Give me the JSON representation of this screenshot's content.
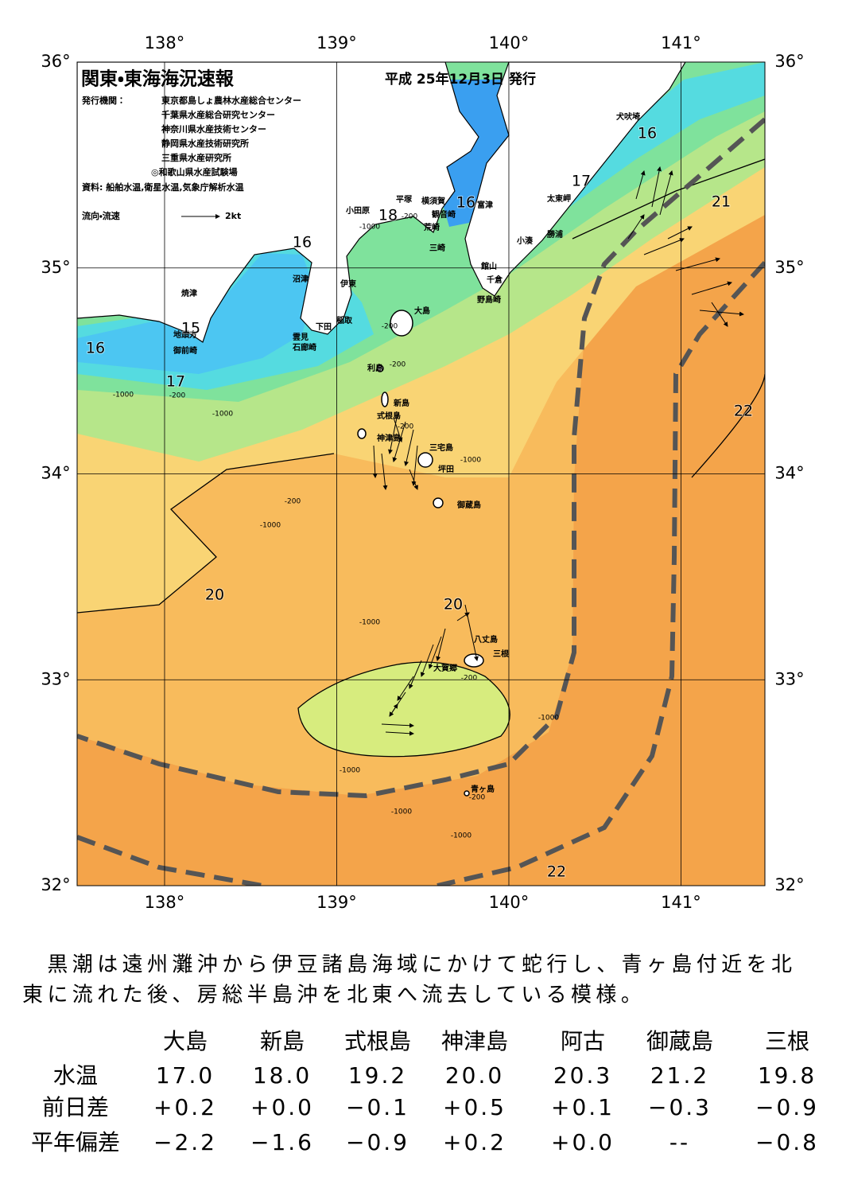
{
  "header": {
    "title": "関東・東海海況速報",
    "date": "平成 25年12月3日 発行",
    "issuer_label": "発行機関：",
    "issuers": [
      "東京都島しょ農林水産総合センター",
      "千葉県水産総合研究センター",
      "神奈川県水産技術センター",
      "静岡県水産技術研究所",
      "三重県水産研究所",
      "◎和歌山県水産試験場"
    ],
    "source": "資料: 船舶水温,衛星水温,気象庁解析水温",
    "legend_label": "流向・流速",
    "legend_scale": "2kt"
  },
  "map": {
    "lon_ticks": [
      {
        "value": 138,
        "label": "138°"
      },
      {
        "value": 139,
        "label": "139°"
      },
      {
        "value": 140,
        "label": "140°"
      },
      {
        "value": 141,
        "label": "141°"
      }
    ],
    "lat_ticks": [
      {
        "value": 36,
        "label": "36°"
      },
      {
        "value": 35,
        "label": "35°"
      },
      {
        "value": 34,
        "label": "34°"
      },
      {
        "value": 33,
        "label": "33°"
      },
      {
        "value": 32,
        "label": "32°"
      }
    ],
    "places": [
      "小田原",
      "平塚",
      "横須賀",
      "富津",
      "観音崎",
      "荒崎",
      "三崎",
      "館山",
      "千倉",
      "野島崎",
      "太東岬",
      "勝浦",
      "小湊",
      "犬吠埼",
      "沼津",
      "伊東",
      "焼津",
      "稲取",
      "下田",
      "雲見",
      "石廊崎",
      "地頭方",
      "御前崎",
      "大島",
      "利島",
      "新島",
      "式根島",
      "神津島",
      "三宅島",
      "坪田",
      "御蔵島",
      "八丈島",
      "三根",
      "大賀郷",
      "青ヶ島"
    ],
    "temperature_labels": [
      "16",
      "18",
      "16",
      "17",
      "16",
      "21",
      "22",
      "15",
      "16",
      "17",
      "20",
      "20",
      "22"
    ],
    "depth_labels": [
      "-1000",
      "-200",
      "-200",
      "-200",
      "-1000",
      "-200",
      "-1000",
      "-200",
      "-1000",
      "-200",
      "-1000",
      "-1000",
      "-200",
      "-1000",
      "-1000",
      "-1000",
      "-1000",
      "-200"
    ]
  },
  "summary": [
    "　黒潮は遠州灘沖から伊豆諸島海域にかけて蛇行し、青ヶ島付近を北",
    "東に流れた後、房総半島沖を北東へ流去している模様。"
  ],
  "table": {
    "columns": [
      "大島",
      "新島",
      "式根島",
      "神津島",
      "阿古",
      "御蔵島",
      "三根"
    ],
    "rows": [
      {
        "label": "水温",
        "cells": [
          "17.0",
          "18.0",
          "19.2",
          "20.0",
          "20.3",
          "21.2",
          "19.8"
        ]
      },
      {
        "label": "前日差",
        "cells": [
          "+0.2",
          "+0.0",
          "−0.1",
          "+0.5",
          "+0.1",
          "−0.3",
          "−0.9"
        ]
      },
      {
        "label": "平年偏差",
        "cells": [
          "−2.2",
          "−1.6",
          "−0.9",
          "+0.2",
          "+0.0",
          "--",
          "−0.8"
        ]
      }
    ]
  }
}
